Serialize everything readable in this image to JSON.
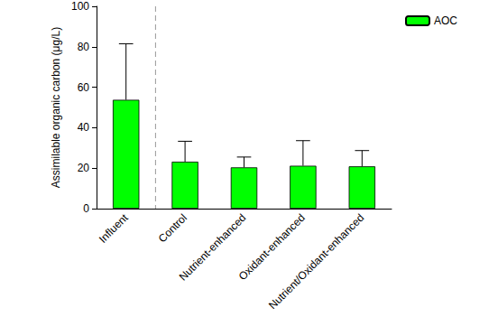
{
  "chart_data": {
    "type": "bar",
    "y_label": "Assimilable organic carbon (μg/L)",
    "categories": [
      "Influent",
      "Control",
      "Nutrient-enhanced",
      "Oxidant-enhanced",
      "Nutrient/Oxidant-enhanced"
    ],
    "series": [
      {
        "name": "AOC",
        "color": "#00ff00",
        "values": [
          53.8,
          23.2,
          20.4,
          21.2,
          20.9
        ],
        "errors": [
          27.7,
          10.1,
          5.1,
          12.4,
          7.8
        ]
      }
    ],
    "ylim": [
      0,
      100
    ],
    "yticks": [
      0,
      20,
      40,
      60,
      80,
      100
    ],
    "grid": false,
    "legend": "upper right"
  }
}
